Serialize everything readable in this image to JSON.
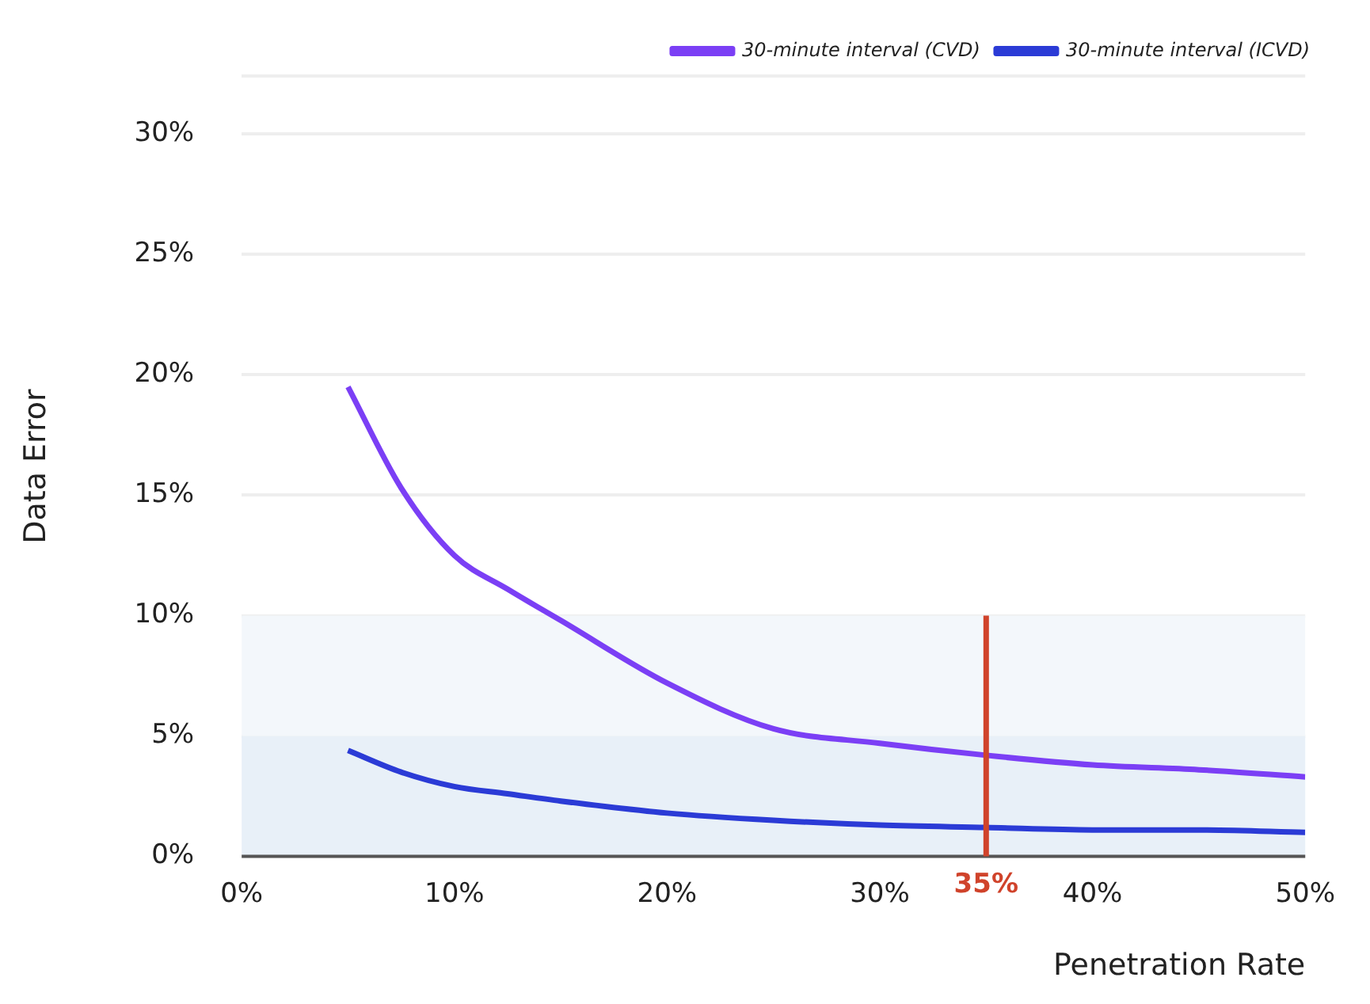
{
  "chart_data": {
    "type": "line",
    "xlabel": "Penetration Rate",
    "ylabel": "Data Error",
    "x": [
      5,
      7.5,
      10,
      12.5,
      15,
      20,
      25,
      30,
      35,
      40,
      45,
      50
    ],
    "series": [
      {
        "name": "30-minute interval (CVD)",
        "color": "#7b3ff5",
        "values": [
          19.5,
          15.3,
          12.5,
          11.1,
          9.8,
          7.2,
          5.3,
          4.7,
          4.2,
          3.8,
          3.6,
          3.3
        ]
      },
      {
        "name": "30-minute interval (ICVD)",
        "color": "#2b3bd6",
        "values": [
          4.4,
          3.5,
          2.9,
          2.6,
          2.3,
          1.8,
          1.5,
          1.3,
          1.2,
          1.1,
          1.1,
          1.0
        ]
      }
    ],
    "xlim": [
      0,
      50
    ],
    "ylim": [
      0,
      32.4
    ],
    "xticks": [
      {
        "value": 0,
        "label": "0%"
      },
      {
        "value": 10,
        "label": "10%"
      },
      {
        "value": 20,
        "label": "20%"
      },
      {
        "value": 30,
        "label": "30%"
      },
      {
        "value": 40,
        "label": "40%"
      },
      {
        "value": 50,
        "label": "50%"
      }
    ],
    "yticks": [
      {
        "value": 0,
        "label": "0%"
      },
      {
        "value": 5,
        "label": "5%"
      },
      {
        "value": 10,
        "label": "10%"
      },
      {
        "value": 15,
        "label": "15%"
      },
      {
        "value": 20,
        "label": "20%"
      },
      {
        "value": 25,
        "label": "25%"
      },
      {
        "value": 30,
        "label": "30%"
      },
      {
        "value": 32.4,
        "label": null
      }
    ],
    "bands": [
      {
        "axis": "y",
        "from": 0,
        "to": 5,
        "color": "#e8f0f8"
      },
      {
        "axis": "y",
        "from": 5,
        "to": 10,
        "color": "#f3f7fb"
      }
    ],
    "ref_lines": [
      {
        "axis": "x",
        "value": 35,
        "label": "35%",
        "color": "#d0432b"
      }
    ],
    "grid": "y",
    "legend": "top right",
    "marker": "none",
    "line_style": "solid"
  }
}
